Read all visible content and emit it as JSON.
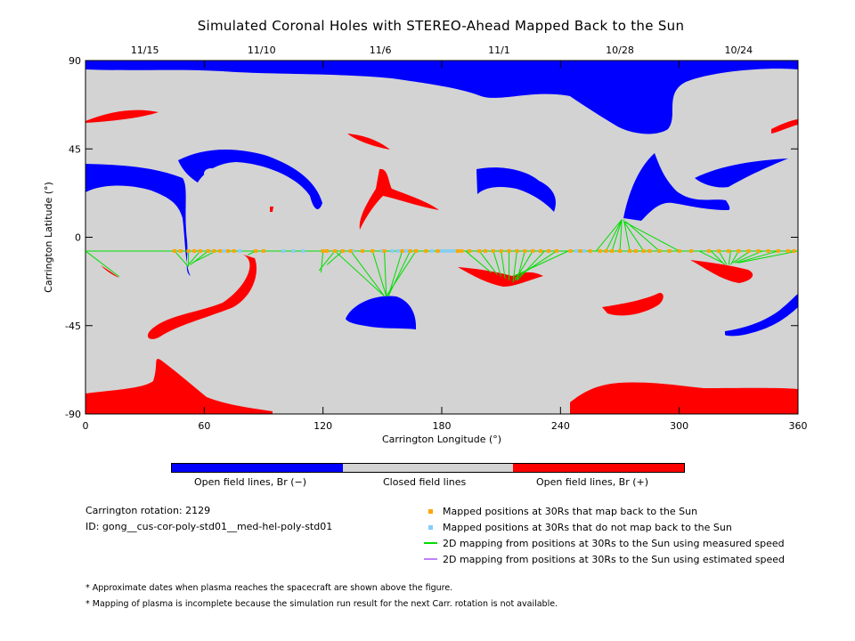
{
  "title": "Simulated Coronal Holes with STEREO-Ahead Mapped Back to the Sun",
  "chart_data": {
    "type": "map",
    "xlabel": "Carrington Longitude (°)",
    "ylabel": "Carrington Latitude (°)",
    "xlim": [
      0,
      360
    ],
    "ylim": [
      -90,
      90
    ],
    "x_ticks": [
      0,
      60,
      120,
      180,
      240,
      300,
      360
    ],
    "y_ticks": [
      -90,
      -45,
      0,
      45,
      90
    ],
    "top_date_ticks": [
      {
        "label": "11/15",
        "lon": 30
      },
      {
        "label": "11/10",
        "lon": 89
      },
      {
        "label": "11/6",
        "lon": 149
      },
      {
        "label": "11/1",
        "lon": 209
      },
      {
        "label": "10/28",
        "lon": 270
      },
      {
        "label": "10/24",
        "lon": 330
      }
    ],
    "colors": {
      "open_negative": "#0000ff",
      "closed": "#d3d3d3",
      "open_positive": "#ff0000",
      "mapped": "#ffa500",
      "unmapped": "#87cefa",
      "measured": "#00dd00",
      "estimated": "#c080ff"
    },
    "spacecraft_trace": {
      "latitude": -7,
      "mapped_lon": [
        45,
        48,
        52,
        55,
        58,
        62,
        65,
        68,
        72,
        75,
        86,
        90,
        120,
        122,
        126,
        130,
        134,
        140,
        145,
        151,
        160,
        164,
        167,
        172,
        178,
        188,
        190,
        194,
        199,
        202,
        206,
        210,
        214,
        218,
        222,
        226,
        230,
        234,
        238,
        245,
        250,
        255,
        260,
        263,
        266,
        270,
        275,
        278,
        282,
        285,
        290,
        295,
        300,
        306,
        315,
        320,
        325,
        330,
        335,
        340,
        345,
        350,
        355,
        358
      ],
      "unmapped_lon": [
        70,
        78,
        100,
        105,
        110,
        135,
        150,
        155,
        158,
        162,
        175,
        180,
        182,
        184,
        186,
        248,
        252,
        290,
        306
      ],
      "measured_links": [
        [
          45,
          -7,
          52,
          -15
        ],
        [
          52,
          -7,
          52,
          -15
        ],
        [
          58,
          -7,
          52,
          -14
        ],
        [
          62,
          -7,
          53,
          -14
        ],
        [
          66,
          -7,
          54,
          -13
        ],
        [
          86,
          -7,
          82,
          -9
        ],
        [
          0,
          -7,
          17,
          -20
        ],
        [
          120,
          -7,
          119,
          -18
        ],
        [
          126,
          -7,
          118,
          -17
        ],
        [
          130,
          -7,
          122,
          -14
        ],
        [
          126,
          -7,
          151,
          -30
        ],
        [
          134,
          -7,
          151,
          -30
        ],
        [
          145,
          -7,
          152,
          -30
        ],
        [
          151,
          -7,
          152,
          -30
        ],
        [
          160,
          -7,
          153,
          -30
        ],
        [
          164,
          -7,
          153,
          -30
        ],
        [
          167,
          -7,
          152,
          -30
        ],
        [
          192,
          -7,
          205,
          -18
        ],
        [
          199,
          -7,
          208,
          -19
        ],
        [
          206,
          -7,
          210,
          -20
        ],
        [
          210,
          -7,
          212,
          -21
        ],
        [
          214,
          -7,
          214,
          -22
        ],
        [
          218,
          -7,
          216,
          -23
        ],
        [
          222,
          -7,
          218,
          -22
        ],
        [
          226,
          -7,
          217,
          -22
        ],
        [
          232,
          -7,
          218,
          -22
        ],
        [
          238,
          -7,
          217,
          -21
        ],
        [
          244,
          -7,
          216,
          -20
        ],
        [
          258,
          -7,
          271,
          9
        ],
        [
          263,
          -7,
          271,
          9
        ],
        [
          266,
          -7,
          271,
          9
        ],
        [
          270,
          -7,
          271,
          9
        ],
        [
          275,
          -7,
          272,
          9
        ],
        [
          282,
          -7,
          272,
          8
        ],
        [
          290,
          -7,
          273,
          8
        ],
        [
          300,
          -7,
          272,
          8
        ],
        [
          310,
          -7,
          322,
          -13
        ],
        [
          316,
          -7,
          323,
          -14
        ],
        [
          320,
          -7,
          324,
          -14
        ],
        [
          326,
          -7,
          325,
          -14
        ],
        [
          330,
          -7,
          326,
          -14
        ],
        [
          336,
          -7,
          327,
          -13
        ],
        [
          342,
          -7,
          328,
          -13
        ],
        [
          350,
          -7,
          329,
          -13
        ],
        [
          360,
          -7,
          330,
          -13
        ]
      ]
    }
  },
  "colorbar": {
    "labels": [
      "Open field lines, Br (−)",
      "Closed field lines",
      "Open field lines, Br (+)"
    ]
  },
  "info": {
    "rotation": "Carrington rotation: 2129",
    "id": "ID: gong__cus-cor-poly-std01__med-hel-poly-std01"
  },
  "legend": [
    {
      "label": "Mapped positions at 30Rs that map back to the Sun",
      "color": "#ffa500",
      "kind": "square"
    },
    {
      "label": "Mapped positions at 30Rs that do not map back to the Sun",
      "color": "#87cefa",
      "kind": "square"
    },
    {
      "label": "2D mapping from positions at 30Rs to the Sun using measured speed",
      "color": "#00dd00",
      "kind": "line"
    },
    {
      "label": "2D mapping from positions at 30Rs to the Sun using estimated speed",
      "color": "#c080ff",
      "kind": "line"
    }
  ],
  "notes": [
    "* Approximate dates when plasma reaches the spacecraft are shown above the figure.",
    "* Mapping of plasma is incomplete because the simulation run result for the next Carr. rotation is not available."
  ]
}
